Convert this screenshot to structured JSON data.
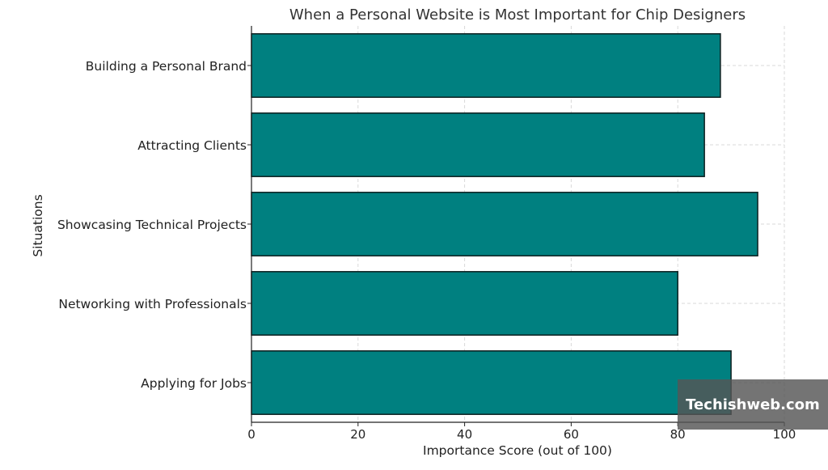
{
  "colors": {
    "bar_fill": "#008080",
    "bar_stroke": "#0d1f1f",
    "grid": "#d9d9d9",
    "axis": "#222222"
  },
  "watermark": {
    "text": "Techishweb.com"
  },
  "chart_data": {
    "type": "bar",
    "orientation": "horizontal",
    "title": "When a Personal Website is Most Important for Chip Designers",
    "xlabel": "Importance Score (out of 100)",
    "ylabel": "Situations",
    "categories": [
      "Building a Personal Brand",
      "Attracting Clients",
      "Showcasing Technical Projects",
      "Networking with Professionals",
      "Applying for Jobs"
    ],
    "values": [
      88,
      85,
      95,
      80,
      90
    ],
    "xlim": [
      0,
      100
    ],
    "xticks": [
      "0",
      "20",
      "40",
      "60",
      "80",
      "100"
    ],
    "grid": true,
    "grid_style": "dashed"
  }
}
